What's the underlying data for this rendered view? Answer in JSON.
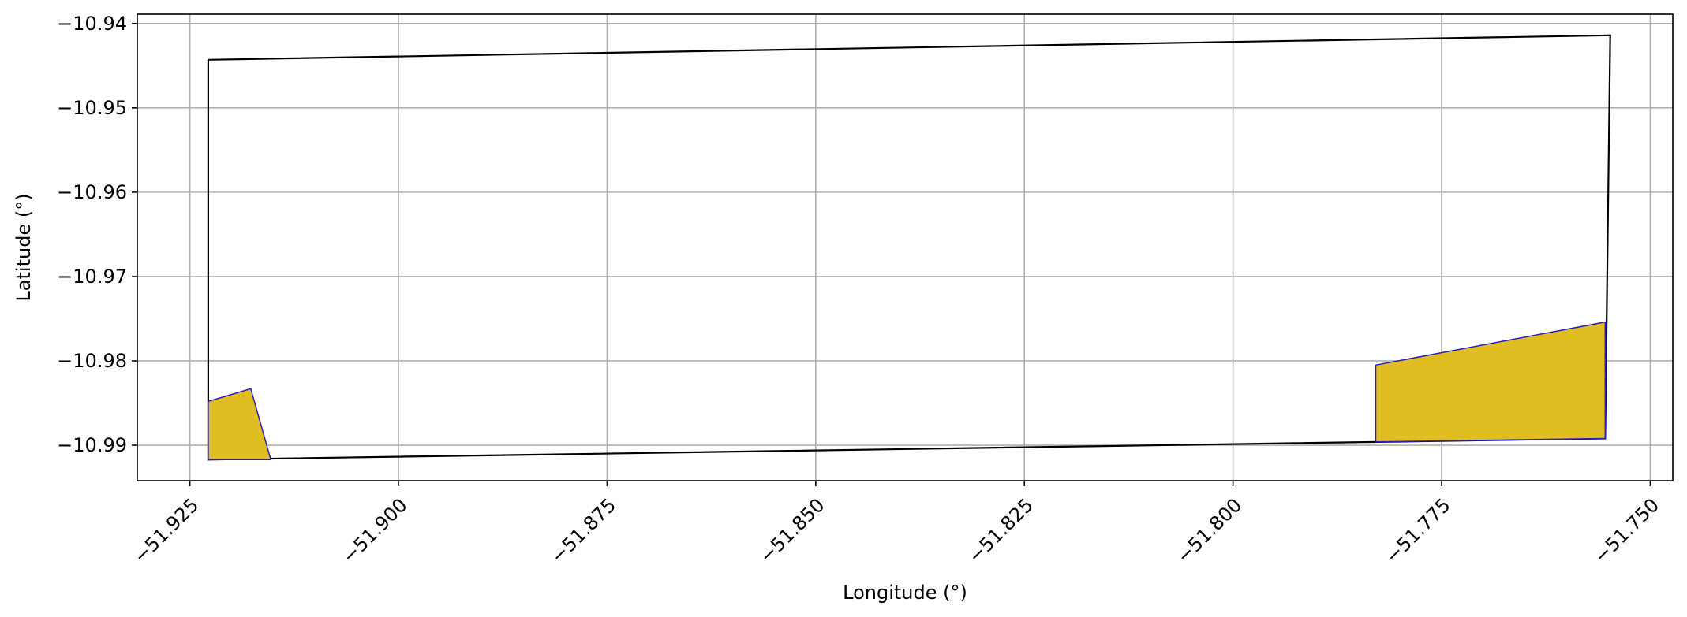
{
  "chart_data": {
    "type": "area",
    "xlabel": "Longitude (°)",
    "ylabel": "Latitude (°)",
    "xlim": [
      -51.9313,
      -51.7473
    ],
    "ylim": [
      -10.9942,
      -10.9389
    ],
    "grid": true,
    "x_ticks": [
      -51.925,
      -51.9,
      -51.875,
      -51.85,
      -51.825,
      -51.8,
      -51.775,
      -51.75
    ],
    "x_tick_labels": [
      "−51.925",
      "−51.900",
      "−51.875",
      "−51.850",
      "−51.825",
      "−51.800",
      "−51.775",
      "−51.750"
    ],
    "y_ticks": [
      -10.94,
      -10.95,
      -10.96,
      -10.97,
      -10.98,
      -10.99
    ],
    "y_tick_labels": [
      "−10.94",
      "−10.95",
      "−10.96",
      "−10.97",
      "−10.98",
      "−10.99"
    ],
    "series": [
      {
        "kind": "outline",
        "color": "#000000",
        "points": [
          [
            -51.9228,
            -10.9443
          ],
          [
            -51.7548,
            -10.9414
          ],
          [
            -51.7554,
            -10.9892
          ],
          [
            -51.9228,
            -10.9917
          ],
          [
            -51.9228,
            -10.9443
          ]
        ]
      },
      {
        "kind": "filled",
        "fill": "#e0be22",
        "edge": "#2a1fb8",
        "points": [
          [
            -51.9228,
            -10.9848
          ],
          [
            -51.9177,
            -10.9833
          ],
          [
            -51.9153,
            -10.9917
          ],
          [
            -51.9228,
            -10.9917
          ],
          [
            -51.9228,
            -10.9848
          ]
        ]
      },
      {
        "kind": "filled",
        "fill": "#e0be22",
        "edge": "#2a1fb8",
        "points": [
          [
            -51.7829,
            -10.9805
          ],
          [
            -51.7554,
            -10.9754
          ],
          [
            -51.7554,
            -10.9892
          ],
          [
            -51.7829,
            -10.9896
          ],
          [
            -51.7829,
            -10.9805
          ]
        ]
      }
    ]
  }
}
